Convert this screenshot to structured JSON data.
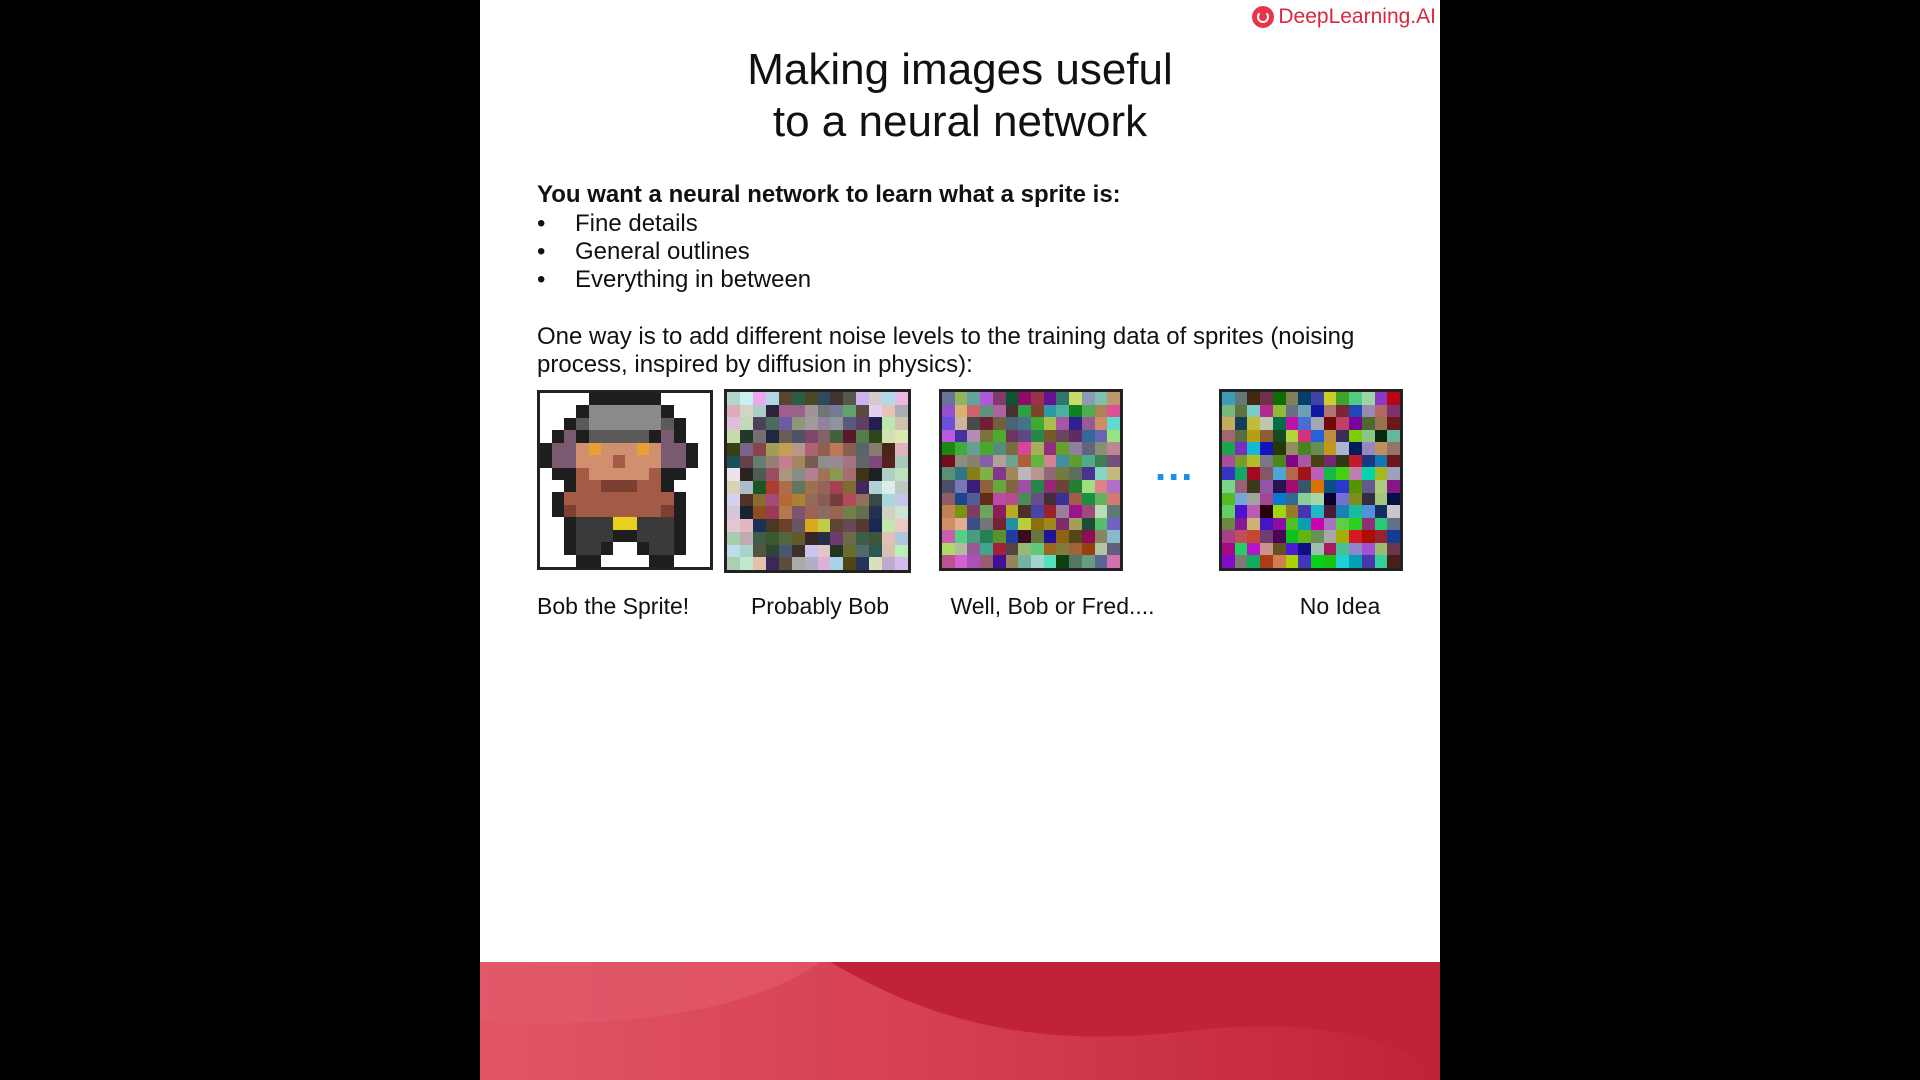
{
  "brand": {
    "name": "DeepLearning.AI",
    "color": "#d8283d",
    "icon": "deeplearning-logo-icon"
  },
  "slide": {
    "title_line1": "Making images useful",
    "title_line2": "to a neural network",
    "intro": "You want a neural network to learn what a sprite is:",
    "bullets": [
      "Fine details",
      "General outlines",
      "Everything in between"
    ],
    "paragraph": "One way is to add different noise levels to the training data of sprites (noising process, inspired by diffusion in physics):",
    "ellipsis": "...",
    "sprites": [
      {
        "caption": "Bob the Sprite!",
        "noise_level": 0
      },
      {
        "caption": "Probably Bob",
        "noise_level": 0.35
      },
      {
        "caption": "Well, Bob or Fred....",
        "noise_level": 0.7
      },
      {
        "caption": "No Idea",
        "noise_level": 1
      }
    ]
  },
  "colors": {
    "accent": "#1d8fe0",
    "footer_dark": "#c02238",
    "footer_light": "#e05566"
  }
}
